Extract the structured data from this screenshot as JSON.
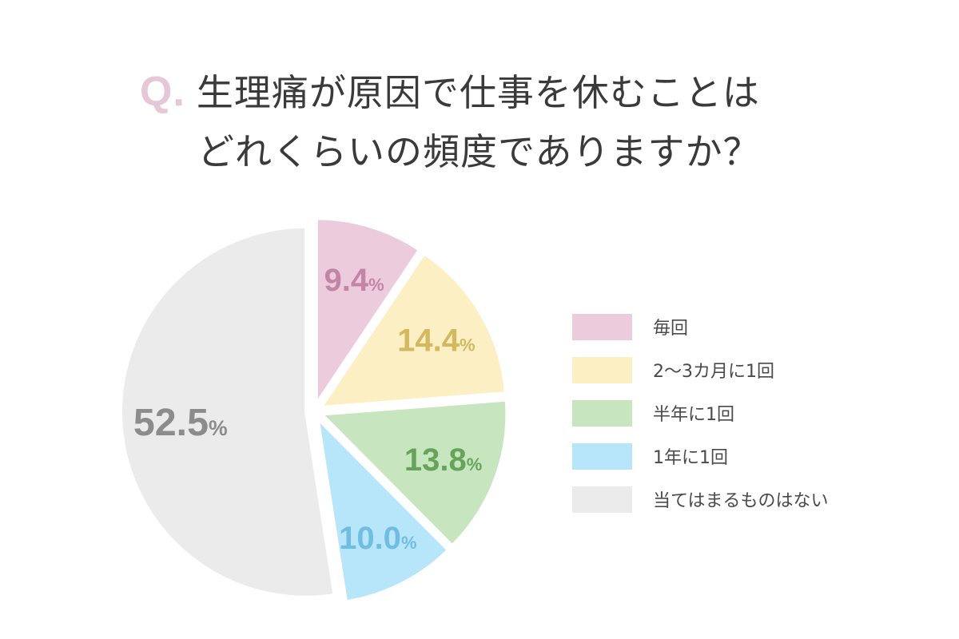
{
  "title": {
    "prefix": "Q.",
    "line1": "生理痛が原因で仕事を休むことは",
    "line2": "どれくらいの頻度でありますか？"
  },
  "chart_data": {
    "type": "pie",
    "title": "Q. 生理痛が原因で仕事を休むことはどれくらいの頻度でありますか？",
    "unit": "%",
    "legend_position": "right",
    "slices": [
      {
        "label": "毎回",
        "value": 9.4,
        "color": "#eccbdc",
        "text_color": "#c385a6"
      },
      {
        "label": "2〜3カ月に1回",
        "value": 14.4,
        "color": "#fcefc4",
        "text_color": "#d4b860"
      },
      {
        "label": "半年に1回",
        "value": 13.8,
        "color": "#c7e6bf",
        "text_color": "#66a45a"
      },
      {
        "label": "1年に1回",
        "value": 10.0,
        "color": "#b7e5fa",
        "text_color": "#6fbde2"
      },
      {
        "label": "当てはまるものはない",
        "value": 52.5,
        "color": "#ebebeb",
        "text_color": "#8c8c8c"
      }
    ]
  }
}
